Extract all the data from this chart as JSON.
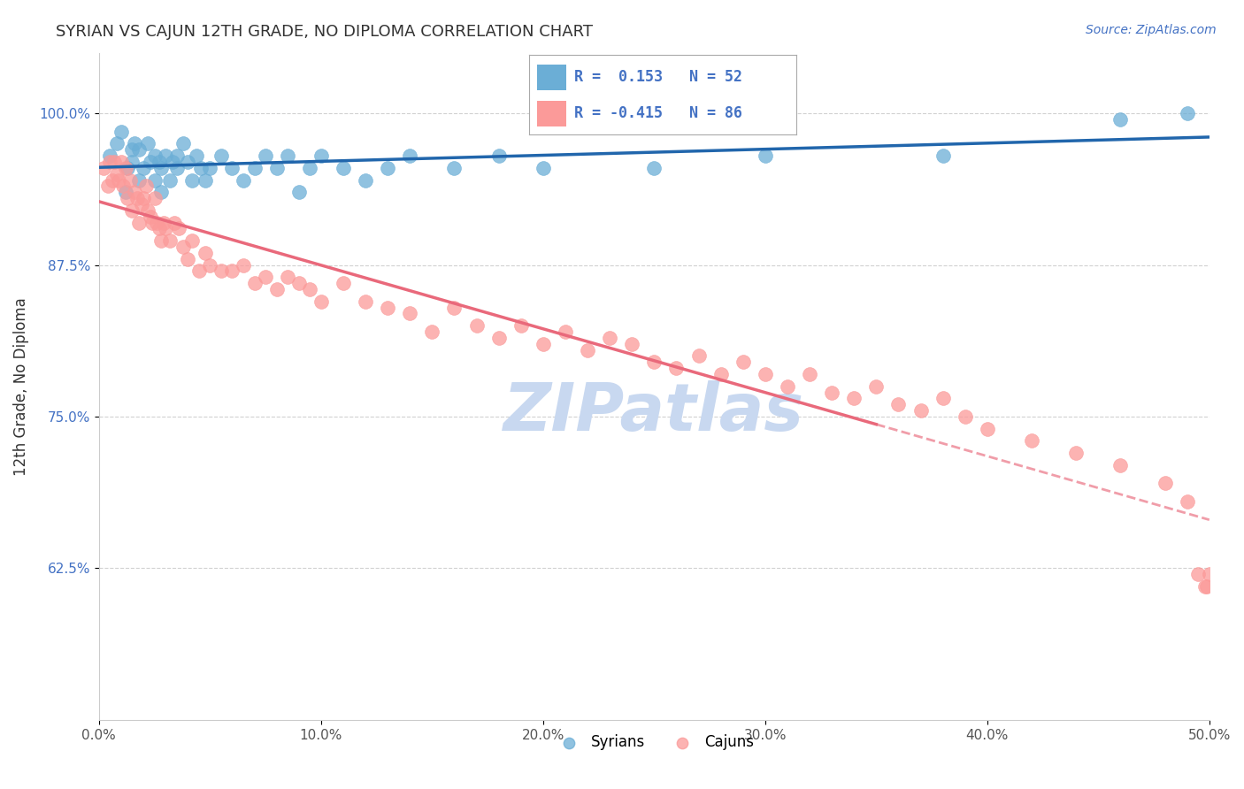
{
  "title": "SYRIAN VS CAJUN 12TH GRADE, NO DIPLOMA CORRELATION CHART",
  "source": "Source: ZipAtlas.com",
  "ylabel_label": "12th Grade, No Diploma",
  "x_ticks": [
    0.0,
    0.1,
    0.2,
    0.3,
    0.4,
    0.5
  ],
  "x_tick_labels": [
    "0.0%",
    "10.0%",
    "20.0%",
    "30.0%",
    "40.0%",
    "50.0%"
  ],
  "y_tick_labels": [
    "62.5%",
    "75.0%",
    "87.5%",
    "100.0%"
  ],
  "y_ticks": [
    0.625,
    0.75,
    0.875,
    1.0
  ],
  "xlim": [
    0.0,
    0.5
  ],
  "ylim": [
    0.5,
    1.05
  ],
  "syrian_R": 0.153,
  "syrian_N": 52,
  "cajun_R": -0.415,
  "cajun_N": 86,
  "syrian_color": "#6baed6",
  "cajun_color": "#fb9a99",
  "syrian_line_color": "#2166ac",
  "cajun_line_color": "#e9697b",
  "grid_color": "#cccccc",
  "watermark_color": "#c8d8f0",
  "syrian_scatter_x": [
    0.005,
    0.008,
    0.01,
    0.012,
    0.013,
    0.015,
    0.015,
    0.016,
    0.018,
    0.018,
    0.02,
    0.022,
    0.023,
    0.025,
    0.025,
    0.027,
    0.028,
    0.028,
    0.03,
    0.032,
    0.033,
    0.035,
    0.035,
    0.038,
    0.04,
    0.042,
    0.044,
    0.046,
    0.048,
    0.05,
    0.055,
    0.06,
    0.065,
    0.07,
    0.075,
    0.08,
    0.085,
    0.09,
    0.095,
    0.1,
    0.11,
    0.12,
    0.13,
    0.14,
    0.16,
    0.18,
    0.2,
    0.25,
    0.3,
    0.38,
    0.46,
    0.49
  ],
  "syrian_scatter_y": [
    0.965,
    0.975,
    0.985,
    0.935,
    0.955,
    0.97,
    0.96,
    0.975,
    0.945,
    0.97,
    0.955,
    0.975,
    0.96,
    0.965,
    0.945,
    0.96,
    0.955,
    0.935,
    0.965,
    0.945,
    0.96,
    0.955,
    0.965,
    0.975,
    0.96,
    0.945,
    0.965,
    0.955,
    0.945,
    0.955,
    0.965,
    0.955,
    0.945,
    0.955,
    0.965,
    0.955,
    0.965,
    0.935,
    0.955,
    0.965,
    0.955,
    0.945,
    0.955,
    0.965,
    0.955,
    0.965,
    0.955,
    0.955,
    0.965,
    0.965,
    0.995,
    1.0
  ],
  "cajun_scatter_x": [
    0.002,
    0.004,
    0.005,
    0.006,
    0.007,
    0.008,
    0.009,
    0.01,
    0.011,
    0.012,
    0.013,
    0.014,
    0.015,
    0.016,
    0.017,
    0.018,
    0.019,
    0.02,
    0.021,
    0.022,
    0.023,
    0.024,
    0.025,
    0.026,
    0.027,
    0.028,
    0.029,
    0.03,
    0.032,
    0.034,
    0.036,
    0.038,
    0.04,
    0.042,
    0.045,
    0.048,
    0.05,
    0.055,
    0.06,
    0.065,
    0.07,
    0.075,
    0.08,
    0.085,
    0.09,
    0.095,
    0.1,
    0.11,
    0.12,
    0.13,
    0.14,
    0.15,
    0.16,
    0.17,
    0.18,
    0.19,
    0.2,
    0.21,
    0.22,
    0.23,
    0.24,
    0.25,
    0.26,
    0.27,
    0.28,
    0.29,
    0.3,
    0.31,
    0.32,
    0.33,
    0.34,
    0.35,
    0.36,
    0.37,
    0.38,
    0.39,
    0.4,
    0.42,
    0.44,
    0.46,
    0.48,
    0.49,
    0.495,
    0.498,
    0.499,
    0.5
  ],
  "cajun_scatter_y": [
    0.955,
    0.94,
    0.96,
    0.945,
    0.96,
    0.95,
    0.945,
    0.96,
    0.94,
    0.955,
    0.93,
    0.945,
    0.92,
    0.935,
    0.93,
    0.91,
    0.925,
    0.93,
    0.94,
    0.92,
    0.915,
    0.91,
    0.93,
    0.91,
    0.905,
    0.895,
    0.91,
    0.905,
    0.895,
    0.91,
    0.905,
    0.89,
    0.88,
    0.895,
    0.87,
    0.885,
    0.875,
    0.87,
    0.87,
    0.875,
    0.86,
    0.865,
    0.855,
    0.865,
    0.86,
    0.855,
    0.845,
    0.86,
    0.845,
    0.84,
    0.835,
    0.82,
    0.84,
    0.825,
    0.815,
    0.825,
    0.81,
    0.82,
    0.805,
    0.815,
    0.81,
    0.795,
    0.79,
    0.8,
    0.785,
    0.795,
    0.785,
    0.775,
    0.785,
    0.77,
    0.765,
    0.775,
    0.76,
    0.755,
    0.765,
    0.75,
    0.74,
    0.73,
    0.72,
    0.71,
    0.695,
    0.68,
    0.62,
    0.61,
    0.61,
    0.62
  ],
  "cajun_line_split_x": 0.35
}
